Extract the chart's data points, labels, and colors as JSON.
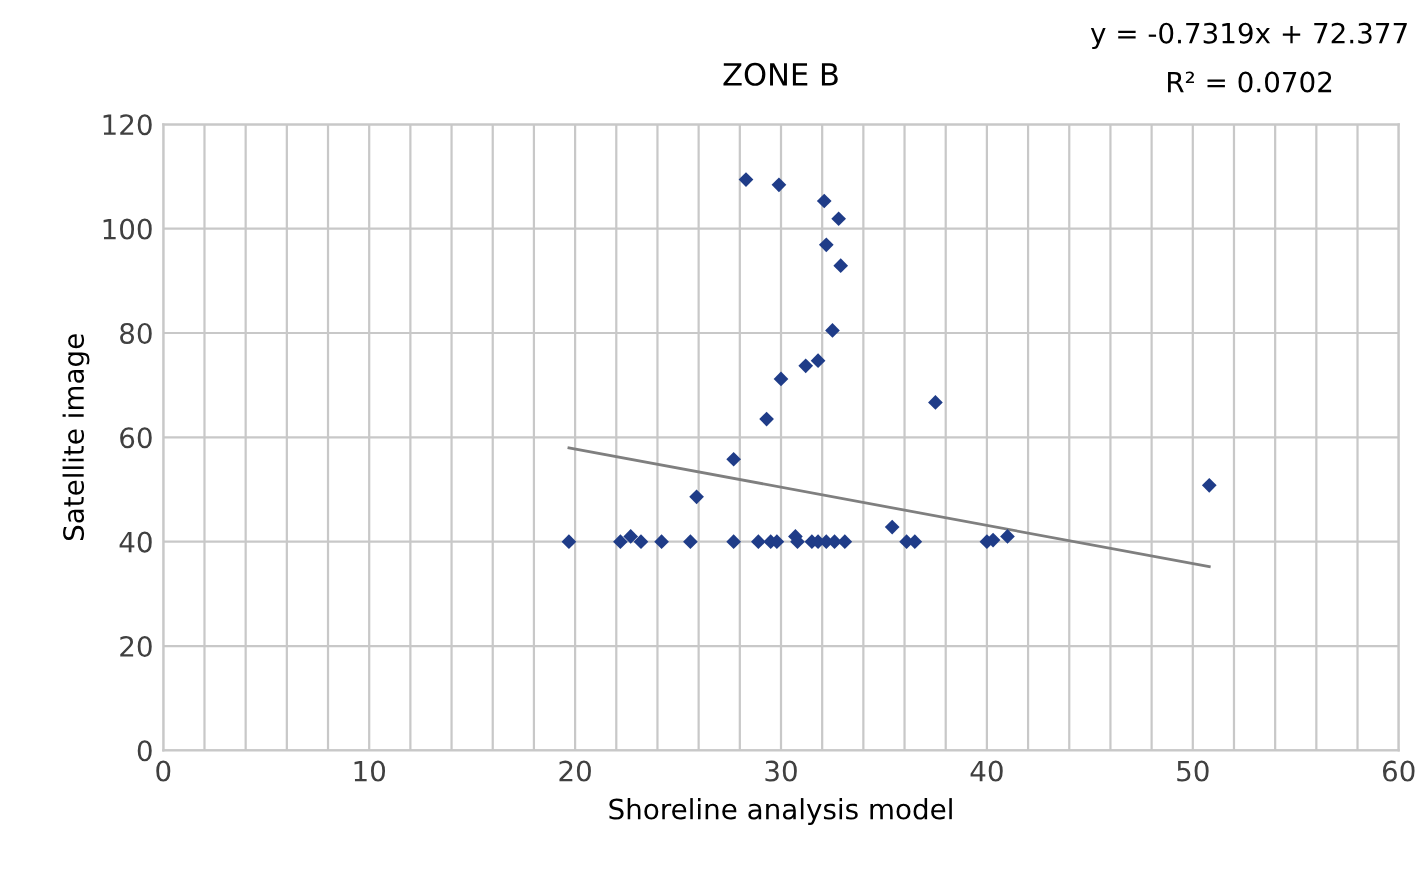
{
  "chart_data": {
    "type": "scatter",
    "title": "ZONE B",
    "xlabel": "Shoreline analysis model",
    "ylabel": "Satellite image",
    "annotations": [
      "y = -0.7319x + 72.377",
      "R² = 0.0702"
    ],
    "series": [
      {
        "type": "scatter",
        "color": "#1f3c88",
        "marker": "diamond",
        "x": [
          19.7,
          22.2,
          22.7,
          23.2,
          24.2,
          25.6,
          25.9,
          27.7,
          27.7,
          28.9,
          29.3,
          29.5,
          29.8,
          30.7,
          30.8,
          31.5,
          31.8,
          32.2,
          32.6,
          33.1,
          35.4,
          36.1,
          36.5,
          37.5,
          40.0,
          40.3,
          41.0,
          50.8,
          28.3,
          29.9,
          32.1,
          32.8,
          32.2,
          32.9,
          32.5,
          31.2,
          31.8,
          30.0
        ],
        "values": [
          40,
          40,
          41,
          40,
          40,
          40,
          48.6,
          55.8,
          40,
          40,
          63.5,
          40,
          40,
          41,
          40,
          40,
          40,
          40,
          40,
          40,
          42.8,
          40,
          40,
          66.7,
          40,
          40.3,
          41,
          50.8,
          109.4,
          108.4,
          105.3,
          101.9,
          96.9,
          92.9,
          80.5,
          73.7,
          74.7,
          71.2
        ]
      },
      {
        "type": "line",
        "color": "#7f7f7f",
        "marker": "none",
        "line_style": "solid",
        "x": [
          19.7,
          50.8
        ],
        "values": [
          58,
          35.2
        ]
      }
    ],
    "xlim": [
      0,
      60
    ],
    "xticks": [
      0,
      {
        "value": 2,
        "label": null
      },
      {
        "value": 4,
        "label": null
      },
      {
        "value": 6,
        "label": null
      },
      {
        "value": 8,
        "label": null
      },
      10,
      {
        "value": 12,
        "label": null
      },
      {
        "value": 14,
        "label": null
      },
      {
        "value": 16,
        "label": null
      },
      {
        "value": 18,
        "label": null
      },
      20,
      {
        "value": 22,
        "label": null
      },
      {
        "value": 24,
        "label": null
      },
      {
        "value": 26,
        "label": null
      },
      {
        "value": 28,
        "label": null
      },
      30,
      {
        "value": 32,
        "label": null
      },
      {
        "value": 34,
        "label": null
      },
      {
        "value": 36,
        "label": null
      },
      {
        "value": 38,
        "label": null
      },
      40,
      {
        "value": 42,
        "label": null
      },
      {
        "value": 44,
        "label": null
      },
      {
        "value": 46,
        "label": null
      },
      {
        "value": 48,
        "label": null
      },
      50,
      {
        "value": 52,
        "label": null
      },
      {
        "value": 54,
        "label": null
      },
      {
        "value": 56,
        "label": null
      },
      {
        "value": 58,
        "label": null
      },
      60
    ],
    "ylim": [
      0,
      120
    ],
    "yticks": [
      0,
      20,
      40,
      60,
      80,
      100,
      120
    ],
    "grid": true,
    "legend": false
  }
}
